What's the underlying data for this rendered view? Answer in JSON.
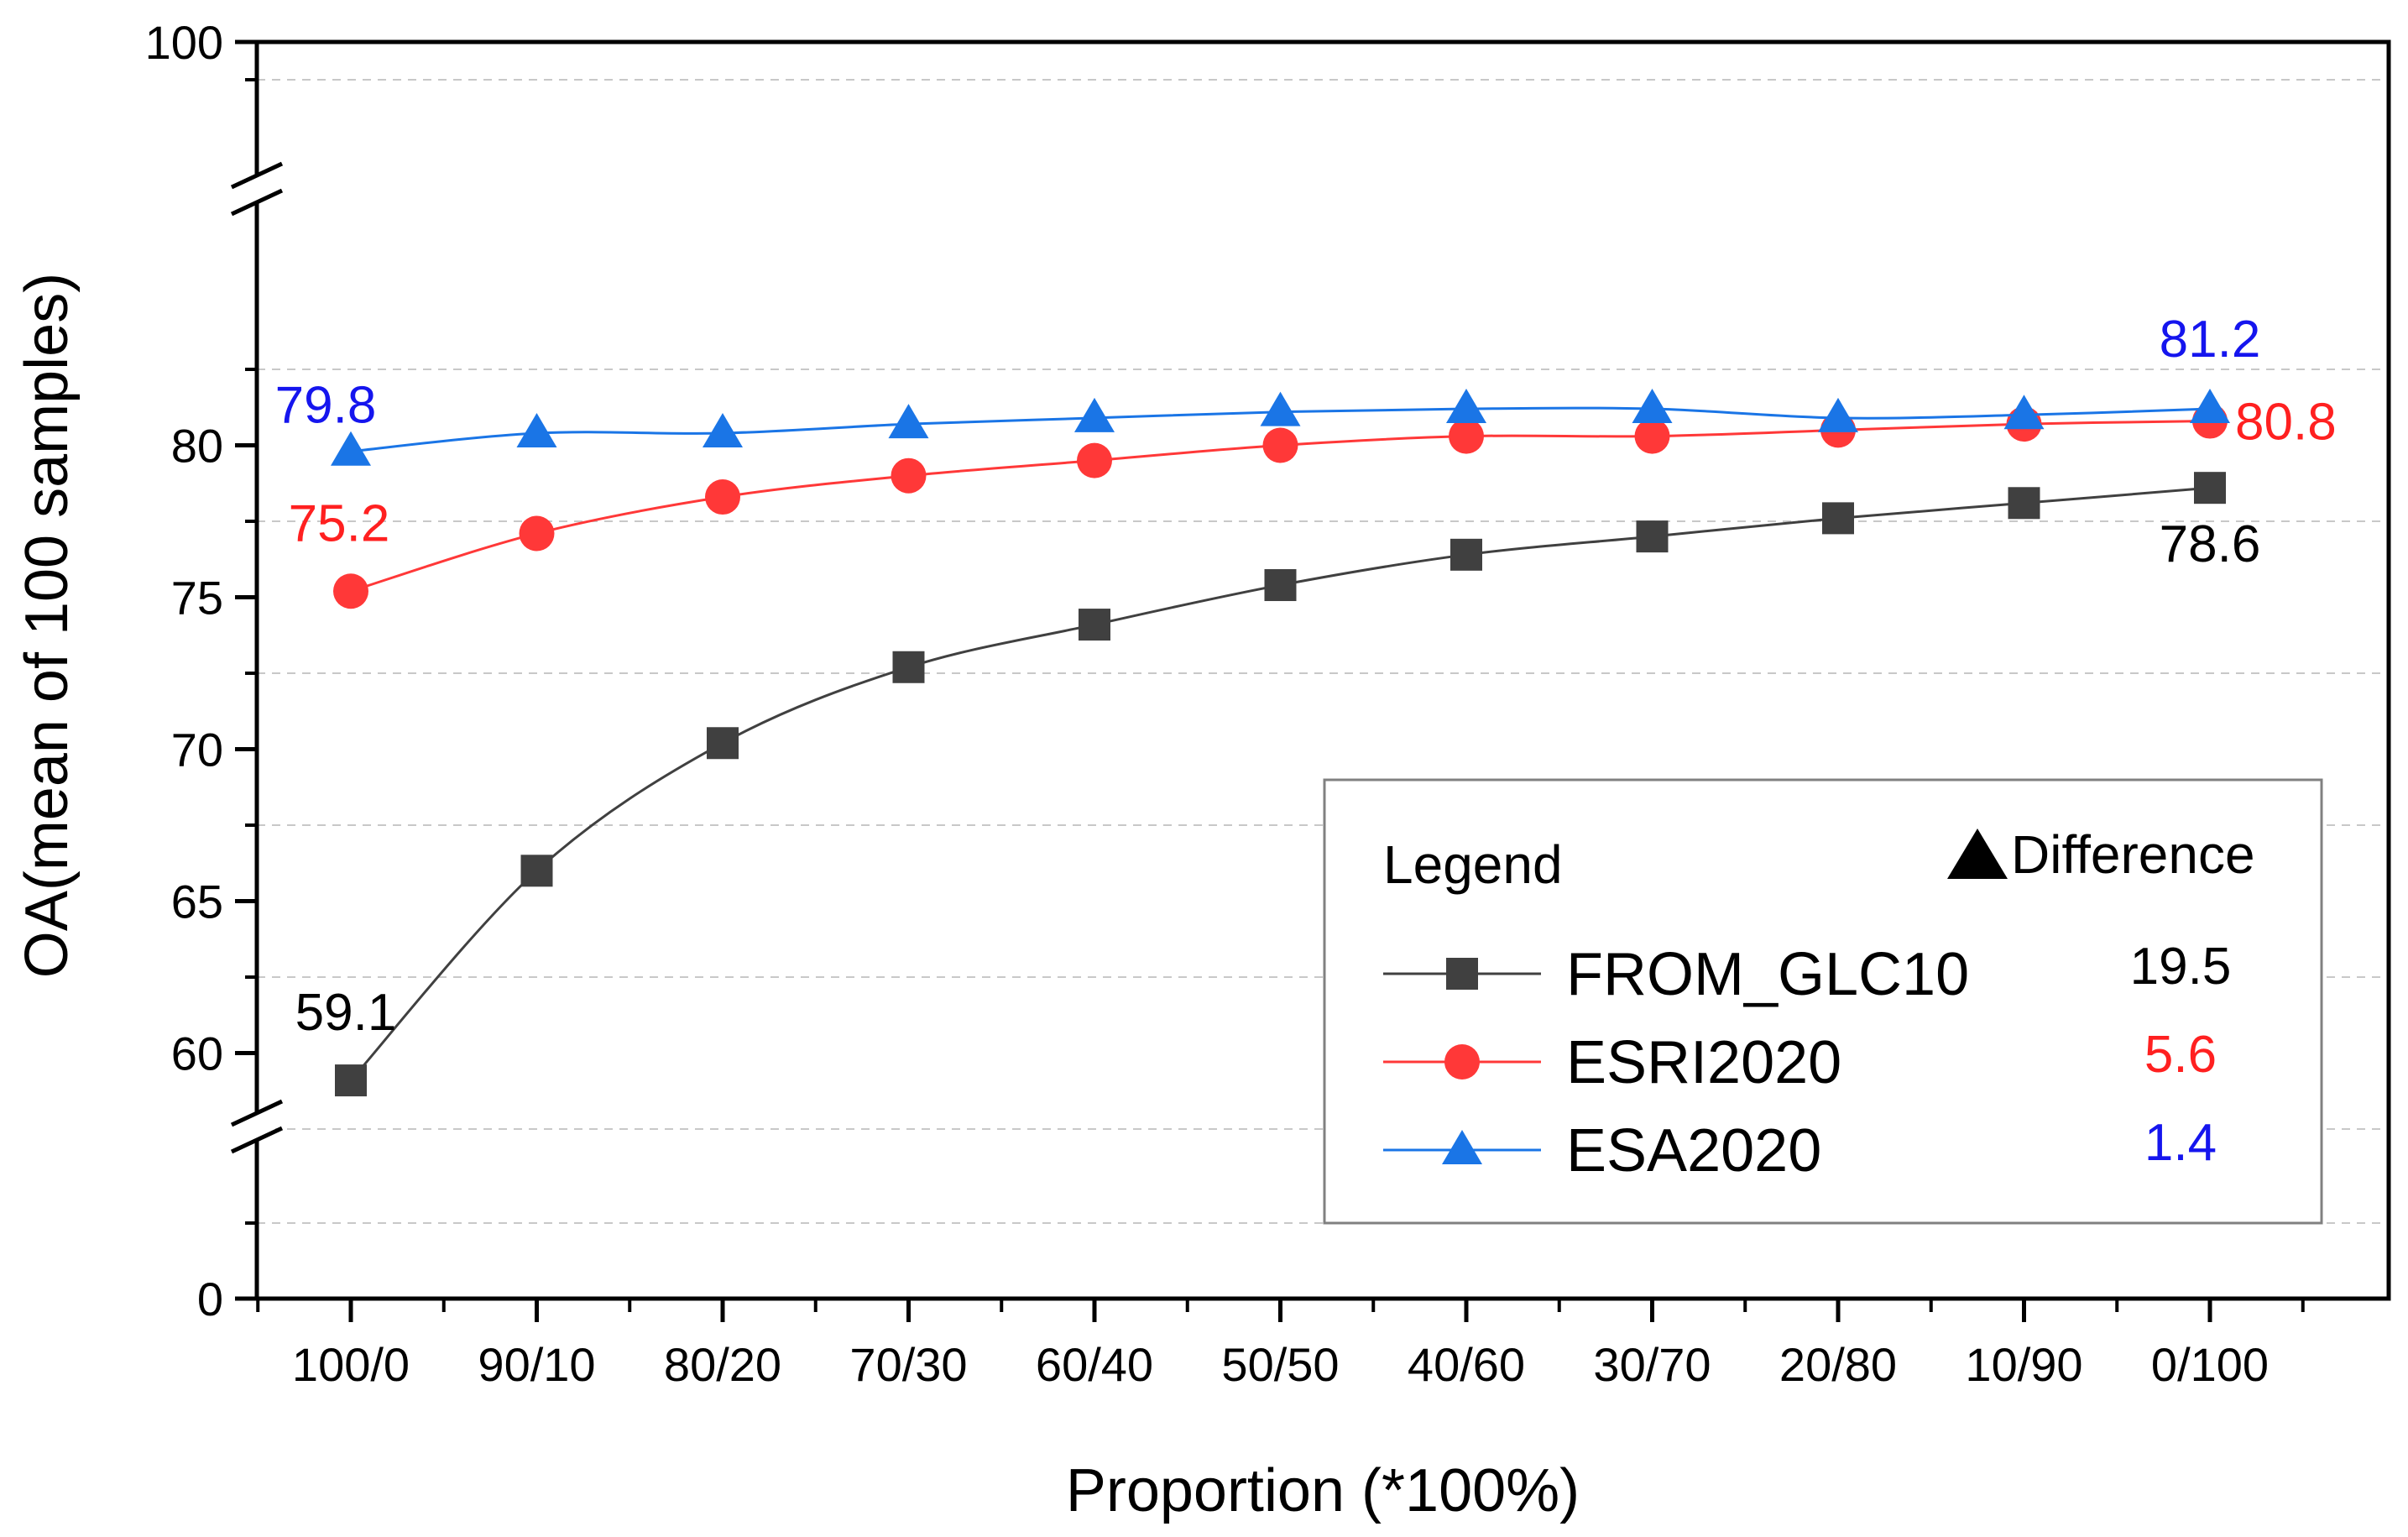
{
  "chart_data": {
    "type": "line",
    "xlabel": "Proportion (*100%)",
    "ylabel": "OA(mean of 100 samples)",
    "categories": [
      "100/0",
      "90/10",
      "80/20",
      "70/30",
      "60/40",
      "50/50",
      "40/60",
      "30/70",
      "20/80",
      "10/90",
      "0/100"
    ],
    "y_ticks": [
      0,
      60,
      65,
      70,
      75,
      80,
      100
    ],
    "y_tick_labels": [
      "0",
      "60",
      "65",
      "70",
      "75",
      "80",
      "100"
    ],
    "y_axis_break": {
      "lower": [
        0,
        5
      ],
      "middle": [
        55,
        82.5
      ],
      "upper": [
        95,
        100
      ]
    },
    "grid": "dashed horizontal",
    "series": [
      {
        "name": "FROM_GLC10",
        "color": "#404040",
        "marker": "square",
        "values": [
          59.1,
          66.0,
          70.2,
          72.7,
          74.1,
          75.4,
          76.4,
          77.0,
          77.6,
          78.1,
          78.6
        ]
      },
      {
        "name": "ESRI2020",
        "color": "#ff3838",
        "marker": "circle",
        "values": [
          75.2,
          77.1,
          78.3,
          79.0,
          79.5,
          80.0,
          80.3,
          80.3,
          80.5,
          80.7,
          80.8
        ]
      },
      {
        "name": "ESA2020",
        "color": "#1a75e6",
        "marker": "triangle",
        "values": [
          79.8,
          80.4,
          80.4,
          80.7,
          80.9,
          81.1,
          81.2,
          81.2,
          80.9,
          81.0,
          81.2
        ]
      }
    ],
    "annotations": [
      {
        "text": "59.1",
        "series": 0,
        "point": 0,
        "color": "#000000"
      },
      {
        "text": "78.6",
        "series": 0,
        "point": 10,
        "color": "#000000"
      },
      {
        "text": "75.2",
        "series": 1,
        "point": 0,
        "color": "#ff2020"
      },
      {
        "text": "80.8",
        "series": 1,
        "point": 10,
        "color": "#ff2020"
      },
      {
        "text": "79.8",
        "series": 2,
        "point": 0,
        "color": "#1515ee"
      },
      {
        "text": "81.2",
        "series": 2,
        "point": 10,
        "color": "#1515ee"
      }
    ],
    "legend": {
      "title": "Legend",
      "difference_label": "Difference",
      "placement": "bottom-right",
      "differences": [
        {
          "value": "19.5",
          "color": "#000000"
        },
        {
          "value": "5.6",
          "color": "#ff2020"
        },
        {
          "value": "1.4",
          "color": "#1515ee"
        }
      ]
    }
  }
}
